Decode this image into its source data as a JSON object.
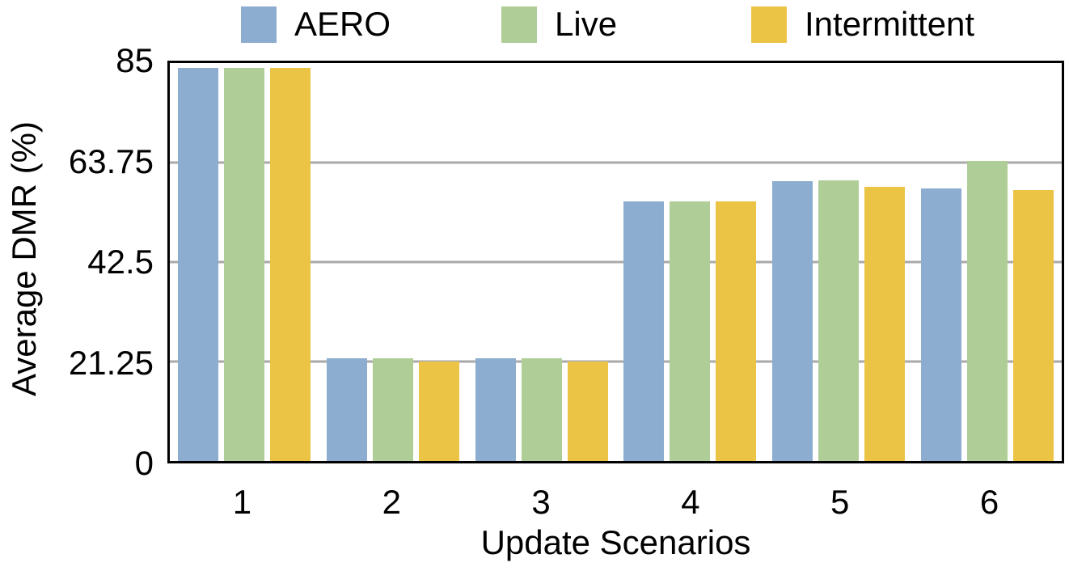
{
  "chart_data": {
    "type": "bar",
    "title": "",
    "xlabel": "Update Scenarios",
    "ylabel": "Average DMR (%)",
    "categories": [
      "1",
      "2",
      "3",
      "4",
      "5",
      "6"
    ],
    "series": [
      {
        "name": "AERO",
        "color": "#8CADD0",
        "values": [
          84.0,
          22.0,
          22.0,
          55.4,
          59.7,
          58.2
        ]
      },
      {
        "name": "Live",
        "color": "#AFCE97",
        "values": [
          84.0,
          22.0,
          22.0,
          55.4,
          59.9,
          64.1
        ]
      },
      {
        "name": "Intermittent",
        "color": "#EBC445",
        "values": [
          84.0,
          21.3,
          21.3,
          55.4,
          58.5,
          57.9
        ]
      }
    ],
    "ylim": [
      0,
      85
    ],
    "yticks": [
      "0",
      "21.25",
      "42.5",
      "63.75",
      "85"
    ],
    "ytick_values": [
      0,
      21.25,
      42.5,
      63.75,
      85
    ],
    "grid": true,
    "grid_color": "#A9A9A9",
    "axis_color": "#000000",
    "legend_position": "top"
  }
}
